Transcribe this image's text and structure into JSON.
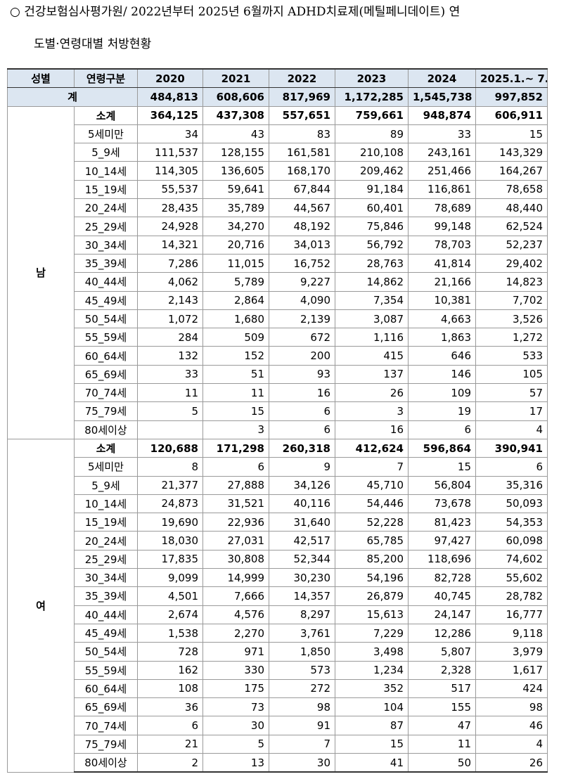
{
  "header": {
    "lines": [
      "○  건강보험심사평가원/ 2022년부터 2025년 6월까지 ADHD치료제(메틸페니데이트) 연",
      "도별·연령대별 처방현황"
    ]
  },
  "table": {
    "columns": [
      "성별",
      "연령구분",
      "2020",
      "2021",
      "2022",
      "2023",
      "2024",
      "2025.1.~ 7."
    ],
    "total": {
      "label": "계",
      "values": [
        "484,813",
        "608,606",
        "817,969",
        "1,172,285",
        "1,545,738",
        "997,852"
      ]
    },
    "groups": [
      {
        "name": "남",
        "rows": [
          {
            "label": "소계",
            "values": [
              "364,125",
              "437,308",
              "557,651",
              "759,661",
              "948,874",
              "606,911"
            ]
          },
          {
            "label": "5세미만",
            "values": [
              "34",
              "43",
              "83",
              "89",
              "33",
              "15"
            ]
          },
          {
            "label": "5_9세",
            "values": [
              "111,537",
              "128,155",
              "161,581",
              "210,108",
              "243,161",
              "143,329"
            ]
          },
          {
            "label": "10_14세",
            "values": [
              "114,305",
              "136,605",
              "168,170",
              "209,462",
              "251,466",
              "164,267"
            ]
          },
          {
            "label": "15_19세",
            "values": [
              "55,537",
              "59,641",
              "67,844",
              "91,184",
              "116,861",
              "78,658"
            ]
          },
          {
            "label": "20_24세",
            "values": [
              "28,435",
              "35,789",
              "44,567",
              "60,401",
              "78,689",
              "48,440"
            ]
          },
          {
            "label": "25_29세",
            "values": [
              "24,928",
              "34,270",
              "48,192",
              "75,846",
              "99,148",
              "62,524"
            ]
          },
          {
            "label": "30_34세",
            "values": [
              "14,321",
              "20,716",
              "34,013",
              "56,792",
              "78,703",
              "52,237"
            ]
          },
          {
            "label": "35_39세",
            "values": [
              "7,286",
              "11,015",
              "16,752",
              "28,763",
              "41,814",
              "29,402"
            ]
          },
          {
            "label": "40_44세",
            "values": [
              "4,062",
              "5,789",
              "9,227",
              "14,862",
              "21,166",
              "14,823"
            ]
          },
          {
            "label": "45_49세",
            "values": [
              "2,143",
              "2,864",
              "4,090",
              "7,354",
              "10,381",
              "7,702"
            ]
          },
          {
            "label": "50_54세",
            "values": [
              "1,072",
              "1,680",
              "2,139",
              "3,087",
              "4,663",
              "3,526"
            ]
          },
          {
            "label": "55_59세",
            "values": [
              "284",
              "509",
              "672",
              "1,116",
              "1,863",
              "1,272"
            ]
          },
          {
            "label": "60_64세",
            "values": [
              "132",
              "152",
              "200",
              "415",
              "646",
              "533"
            ]
          },
          {
            "label": "65_69세",
            "values": [
              "33",
              "51",
              "93",
              "137",
              "146",
              "105"
            ]
          },
          {
            "label": "70_74세",
            "values": [
              "11",
              "11",
              "16",
              "26",
              "109",
              "57"
            ]
          },
          {
            "label": "75_79세",
            "values": [
              "5",
              "15",
              "6",
              "3",
              "19",
              "17"
            ]
          },
          {
            "label": "80세이상",
            "values": [
              null,
              "3",
              "6",
              "16",
              "6",
              "4"
            ]
          }
        ]
      },
      {
        "name": "여",
        "rows": [
          {
            "label": "소계",
            "values": [
              "120,688",
              "171,298",
              "260,318",
              "412,624",
              "596,864",
              "390,941"
            ]
          },
          {
            "label": "5세미만",
            "values": [
              "8",
              "6",
              "9",
              "7",
              "15",
              "6"
            ]
          },
          {
            "label": "5_9세",
            "values": [
              "21,377",
              "27,888",
              "34,126",
              "45,710",
              "56,804",
              "35,316"
            ]
          },
          {
            "label": "10_14세",
            "values": [
              "24,873",
              "31,521",
              "40,116",
              "54,446",
              "73,678",
              "50,093"
            ]
          },
          {
            "label": "15_19세",
            "values": [
              "19,690",
              "22,936",
              "31,640",
              "52,228",
              "81,423",
              "54,353"
            ]
          },
          {
            "label": "20_24세",
            "values": [
              "18,030",
              "27,031",
              "42,517",
              "65,785",
              "97,427",
              "60,098"
            ]
          },
          {
            "label": "25_29세",
            "values": [
              "17,835",
              "30,808",
              "52,344",
              "85,200",
              "118,696",
              "74,602"
            ]
          },
          {
            "label": "30_34세",
            "values": [
              "9,099",
              "14,999",
              "30,230",
              "54,196",
              "82,728",
              "55,602"
            ]
          },
          {
            "label": "35_39세",
            "values": [
              "4,501",
              "7,666",
              "14,357",
              "26,879",
              "40,745",
              "28,782"
            ]
          },
          {
            "label": "40_44세",
            "values": [
              "2,674",
              "4,576",
              "8,297",
              "15,613",
              "24,147",
              "16,777"
            ]
          },
          {
            "label": "45_49세",
            "values": [
              "1,538",
              "2,270",
              "3,761",
              "7,229",
              "12,286",
              "9,118"
            ]
          },
          {
            "label": "50_54세",
            "values": [
              "728",
              "971",
              "1,850",
              "3,498",
              "5,807",
              "3,979"
            ]
          },
          {
            "label": "55_59세",
            "values": [
              "162",
              "330",
              "573",
              "1,234",
              "2,328",
              "1,617"
            ]
          },
          {
            "label": "60_64세",
            "values": [
              "108",
              "175",
              "272",
              "352",
              "517",
              "424"
            ]
          },
          {
            "label": "65_69세",
            "values": [
              "36",
              "73",
              "98",
              "104",
              "155",
              "98"
            ]
          },
          {
            "label": "70_74세",
            "values": [
              "6",
              "30",
              "91",
              "87",
              "47",
              "46"
            ]
          },
          {
            "label": "75_79세",
            "values": [
              "21",
              "5",
              "7",
              "15",
              "11",
              "4"
            ]
          },
          {
            "label": "80세이상",
            "values": [
              "2",
              "13",
              "30",
              "41",
              "50",
              "26"
            ]
          }
        ]
      }
    ]
  }
}
